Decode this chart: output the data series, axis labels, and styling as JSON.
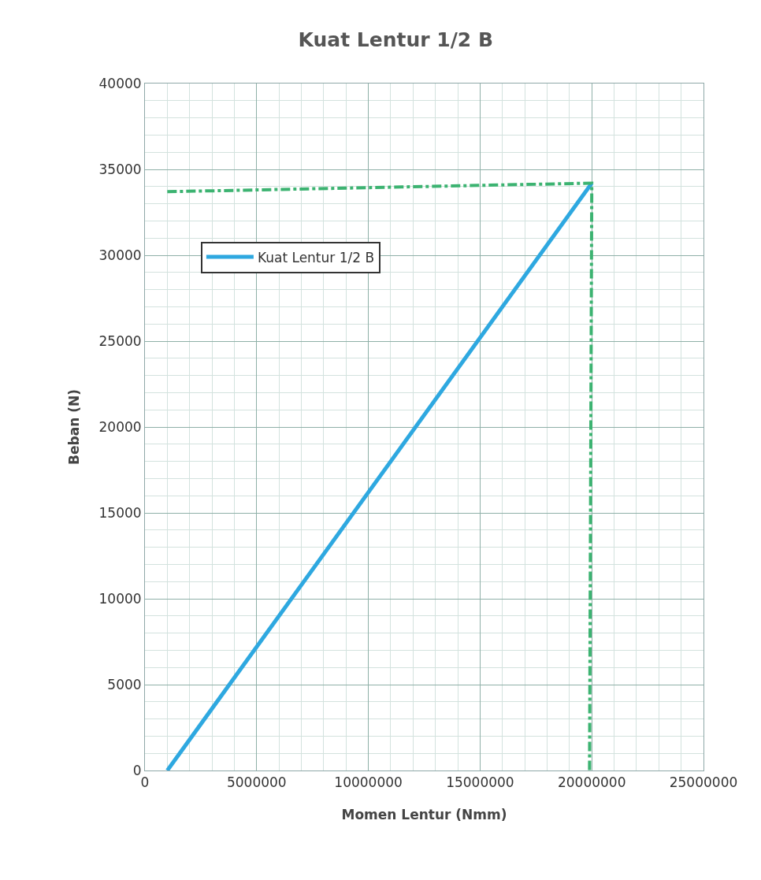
{
  "chart_data": {
    "type": "line",
    "title": "Kuat Lentur 1/2 B",
    "xlabel": "Momen Lentur (Nmm)",
    "ylabel": "Beban (N)",
    "xlim": [
      0,
      25000000
    ],
    "xticks": [
      0,
      5000000,
      10000000,
      15000000,
      20000000,
      25000000
    ],
    "ylim": [
      0,
      40000
    ],
    "yticks": [
      0,
      5000,
      10000,
      15000,
      20000,
      25000,
      30000,
      35000,
      40000
    ],
    "grid": true,
    "legend": "left",
    "marker": "none",
    "series": [
      {
        "name": "Kuat Lentur 1/2 B",
        "color": "#2ea8e0",
        "x": [
          1000000,
          20000000
        ],
        "values": [
          0,
          34200
        ],
        "line_style": "solid"
      },
      {
        "color": "#3cb371",
        "x": [
          1000000,
          20000000,
          20000000,
          19900000
        ],
        "values": [
          33700,
          34200,
          34200,
          0
        ],
        "line_style": "dashed"
      }
    ]
  }
}
